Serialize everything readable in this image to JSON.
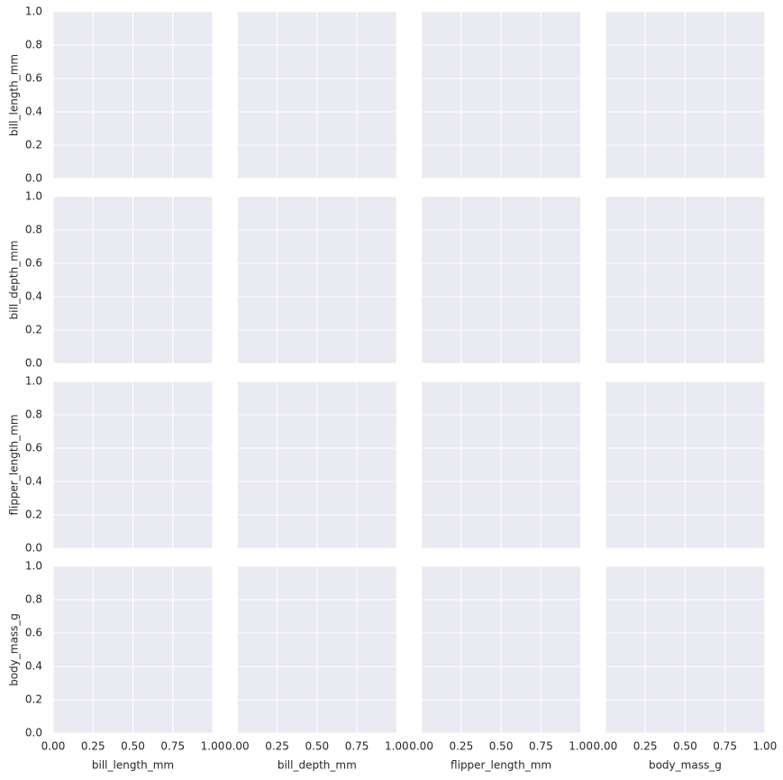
{
  "chart_data": {
    "type": "pair_grid",
    "variables": [
      "bill_length_mm",
      "bill_depth_mm",
      "flipper_length_mm",
      "body_mass_g"
    ],
    "xlim": [
      0,
      1
    ],
    "ylim": [
      0,
      1
    ],
    "xticks": [
      {
        "value": 0,
        "label": "0.00"
      },
      {
        "value": 0.25,
        "label": "0.25"
      },
      {
        "value": 0.5,
        "label": "0.50"
      },
      {
        "value": 0.75,
        "label": "0.75"
      },
      {
        "value": 1,
        "label": "1.00"
      }
    ],
    "yticks": [
      {
        "value": 0,
        "label": "0.0"
      },
      {
        "value": 0.2,
        "label": "0.2"
      },
      {
        "value": 0.4,
        "label": "0.4"
      },
      {
        "value": 0.6,
        "label": "0.6"
      },
      {
        "value": 0.8,
        "label": "0.8"
      },
      {
        "value": 1,
        "label": "1.0"
      }
    ],
    "grid": true,
    "background": "#eaeaf2",
    "grid_color": "#ffffff"
  }
}
